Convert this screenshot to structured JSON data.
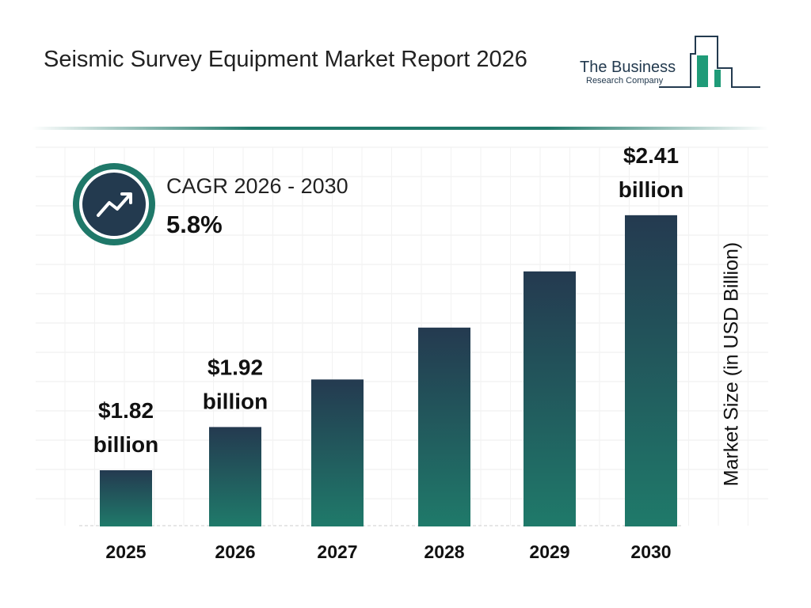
{
  "title": "Seismic Survey Equipment Market Report 2026",
  "logo": {
    "line1": "The Business",
    "line2": "Research Company"
  },
  "cagr": {
    "label": "CAGR 2026 - 2030",
    "value": "5.8%",
    "icon": "trend-up-icon"
  },
  "colors": {
    "bar_top": "#243a50",
    "bar_bottom": "#1f7a6a",
    "accent": "#1f7869"
  },
  "chart_data": {
    "type": "bar",
    "categories": [
      "2025",
      "2026",
      "2027",
      "2028",
      "2029",
      "2030"
    ],
    "values": [
      1.82,
      1.92,
      2.03,
      2.15,
      2.28,
      2.41
    ],
    "data_labels": [
      "$1.82 billion",
      "$1.92 billion",
      "",
      "",
      "",
      "$2.41 billion"
    ],
    "ylabel": "Market Size (in USD Billion)",
    "xlabel": "",
    "grid": true
  }
}
